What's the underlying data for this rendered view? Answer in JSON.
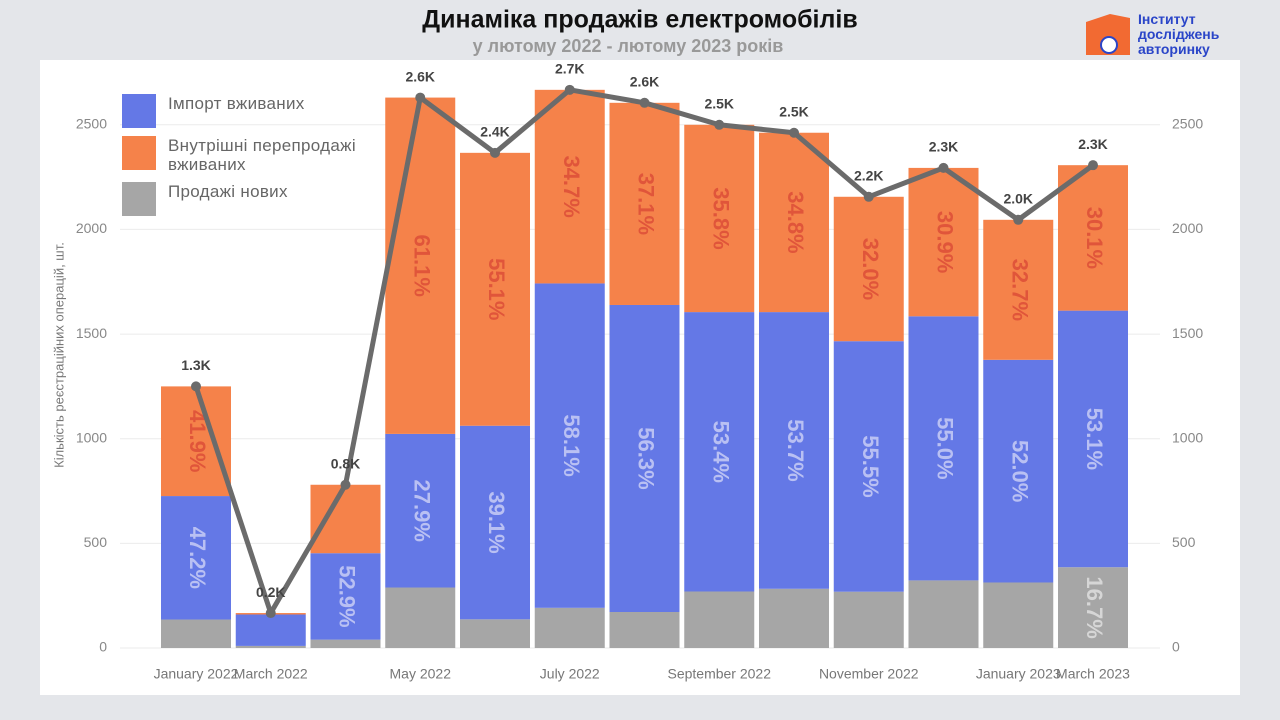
{
  "chart_data": {
    "type": "stacked_bar_line",
    "title": "Динаміка продажів електромобілів",
    "subtitle": "у лютому 2022 - лютому 2023 років",
    "logo": [
      "Інститут",
      "досліджень",
      "авторинку"
    ],
    "ylabel": "Кількість реєстраційних операцій, шт.",
    "categories": [
      "January 2022",
      "March 2022",
      null,
      "May 2022",
      null,
      "July 2022",
      null,
      "September 2022",
      null,
      "November 2022",
      null,
      "January 2023",
      "March 2023"
    ],
    "series": [
      {
        "name": "Імпорт вживаних",
        "color": "#6478e6",
        "values": [
          590,
          150,
          413,
          734,
          925,
          1550,
          1467,
          1335,
          1322,
          1197,
          1262,
          1064,
          1226
        ],
        "share_labels": [
          "47.2%",
          null,
          "52.9%",
          "27.9%",
          "39.1%",
          "58.1%",
          "56.3%",
          "53.4%",
          "53.7%",
          "55.5%",
          "55.0%",
          "52.0%",
          "53.1%"
        ],
        "label_color": "#b9c0f3"
      },
      {
        "name": "Внутрішні перепродажі вживаних",
        "color": "#f5824a",
        "values": [
          524,
          7,
          327,
          1607,
          1304,
          925,
          966,
          895,
          857,
          690,
          709,
          669,
          695
        ],
        "share_labels": [
          "41.9%",
          null,
          null,
          "61.1%",
          "55.1%",
          "34.7%",
          "37.1%",
          "35.8%",
          "34.8%",
          "32.0%",
          "30.9%",
          "32.7%",
          "30.1%"
        ],
        "label_color": "#e0553a"
      },
      {
        "name": "Продажі нових",
        "color": "#a6a6a6",
        "values": [
          136,
          10,
          40,
          289,
          137,
          192,
          172,
          270,
          283,
          269,
          323,
          313,
          386
        ],
        "share_labels": [
          null,
          null,
          null,
          null,
          null,
          null,
          null,
          null,
          null,
          null,
          null,
          null,
          "16.7%"
        ],
        "label_color": "#d6d6d6"
      }
    ],
    "stack_order": [
      2,
      0,
      1
    ],
    "total": {
      "color": "#6b6b6b",
      "values": [
        1250,
        167,
        780,
        2630,
        2366,
        2667,
        2605,
        2500,
        2462,
        2156,
        2294,
        2046,
        2307
      ],
      "value_labels": [
        "1.3K",
        "0.2K",
        "0.8K",
        "2.6K",
        "2.4K",
        "2.7K",
        "2.6K",
        "2.5K",
        "2.5K",
        "2.2K",
        "2.3K",
        "2.0K",
        "2.3K"
      ]
    },
    "ylim": [
      0,
      2800
    ],
    "yticks": [
      0,
      500,
      1000,
      1500,
      2000,
      2500
    ],
    "grid": true
  }
}
